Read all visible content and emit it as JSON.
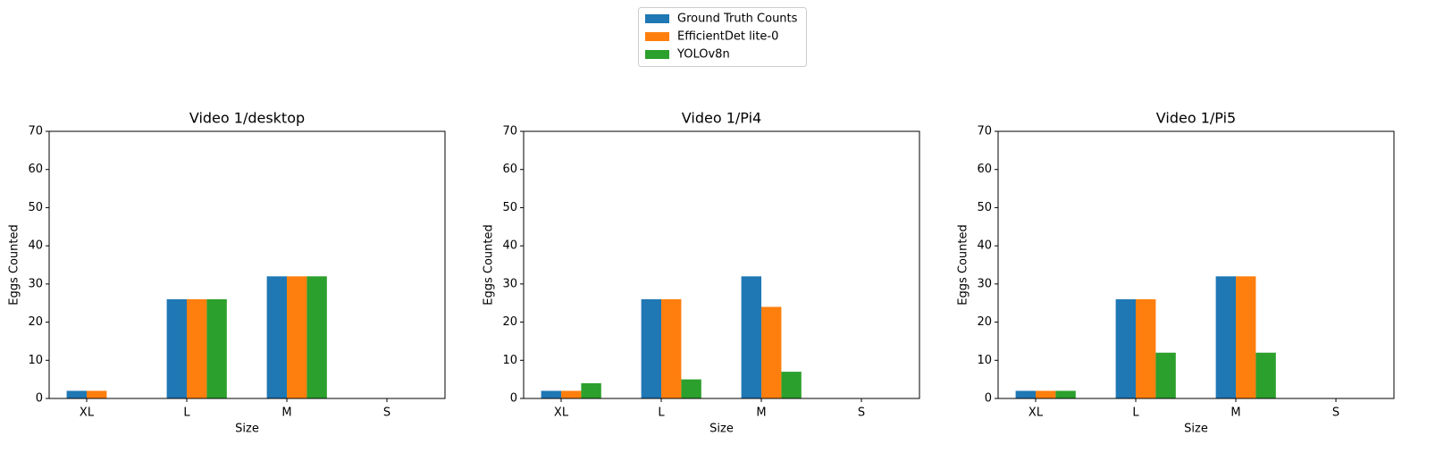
{
  "legend_loc": "upper center",
  "chart_data": [
    {
      "type": "bar",
      "title": "Video 1/desktop",
      "x_label": "Size",
      "y_label": "Eggs Counted",
      "categories": [
        "XL",
        "L",
        "M",
        "S"
      ],
      "ylim": [
        0,
        70
      ],
      "yticks": [
        0,
        10,
        20,
        30,
        40,
        50,
        60,
        70
      ],
      "series": [
        {
          "name": "Ground Truth Counts",
          "color": "#1f77b4",
          "values": [
            2,
            26,
            32,
            0
          ]
        },
        {
          "name": "EfficientDet lite-0",
          "color": "#ff7f0e",
          "values": [
            2,
            26,
            32,
            0
          ]
        },
        {
          "name": "YOLOv8n",
          "color": "#2ca02c",
          "values": [
            0,
            26,
            32,
            0
          ]
        }
      ]
    },
    {
      "type": "bar",
      "title": "Video 1/Pi4",
      "x_label": "Size",
      "y_label": "Eggs Counted",
      "categories": [
        "XL",
        "L",
        "M",
        "S"
      ],
      "ylim": [
        0,
        70
      ],
      "yticks": [
        0,
        10,
        20,
        30,
        40,
        50,
        60,
        70
      ],
      "series": [
        {
          "name": "Ground Truth Counts",
          "color": "#1f77b4",
          "values": [
            2,
            26,
            32,
            0
          ]
        },
        {
          "name": "EfficientDet lite-0",
          "color": "#ff7f0e",
          "values": [
            2,
            26,
            24,
            0
          ]
        },
        {
          "name": "YOLOv8n",
          "color": "#2ca02c",
          "values": [
            4,
            5,
            7,
            0
          ]
        }
      ]
    },
    {
      "type": "bar",
      "title": "Video 1/Pi5",
      "x_label": "Size",
      "y_label": "Eggs Counted",
      "categories": [
        "XL",
        "L",
        "M",
        "S"
      ],
      "ylim": [
        0,
        70
      ],
      "yticks": [
        0,
        10,
        20,
        30,
        40,
        50,
        60,
        70
      ],
      "series": [
        {
          "name": "Ground Truth Counts",
          "color": "#1f77b4",
          "values": [
            2,
            26,
            32,
            0
          ]
        },
        {
          "name": "EfficientDet lite-0",
          "color": "#ff7f0e",
          "values": [
            2,
            26,
            32,
            0
          ]
        },
        {
          "name": "YOLOv8n",
          "color": "#2ca02c",
          "values": [
            2,
            12,
            12,
            0
          ]
        }
      ]
    }
  ]
}
